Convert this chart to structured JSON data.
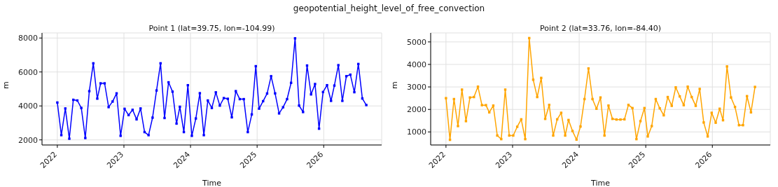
{
  "chart_data": [
    {
      "type": "line",
      "title": "geopotential_height_level_of_free_convection",
      "subtitle": "Point 1 (lat=39.75, lon=-104.99)",
      "xlabel": "Time",
      "ylabel": "m",
      "x": [
        2022.0,
        2022.06,
        2022.12,
        2022.18,
        2022.24,
        2022.3,
        2022.36,
        2022.42,
        2022.48,
        2022.54,
        2022.6,
        2022.65,
        2022.71,
        2022.77,
        2022.83,
        2022.89,
        2022.95,
        2023.01,
        2023.07,
        2023.13,
        2023.19,
        2023.25,
        2023.31,
        2023.37,
        2023.43,
        2023.49,
        2023.55,
        2023.61,
        2023.67,
        2023.73,
        2023.79,
        2023.84,
        2023.9,
        2023.96,
        2024.02,
        2024.08,
        2024.14,
        2024.2,
        2024.26,
        2024.32,
        2024.38,
        2024.44,
        2024.5,
        2024.56,
        2024.62,
        2024.68,
        2024.74,
        2024.8,
        2024.86,
        2024.92,
        2024.98,
        2025.03,
        2025.09,
        2025.15,
        2025.21,
        2025.27,
        2025.33,
        2025.39,
        2025.45,
        2025.51,
        2025.57,
        2025.63,
        2025.69,
        2025.75,
        2025.81,
        2025.87,
        2025.93,
        2025.99,
        2026.05,
        2026.11,
        2026.16,
        2026.22,
        2026.28,
        2026.34,
        2026.4,
        2026.46,
        2026.52,
        2026.58,
        2026.64
      ],
      "values": [
        4200,
        2280,
        3850,
        2070,
        4360,
        4320,
        3880,
        2110,
        4870,
        6510,
        4430,
        5330,
        5330,
        3930,
        4260,
        4740,
        2240,
        3830,
        3460,
        3770,
        3210,
        3850,
        2460,
        2280,
        3310,
        4910,
        6510,
        3290,
        5390,
        4840,
        2960,
        3950,
        2460,
        5220,
        2240,
        3260,
        4750,
        2280,
        4320,
        3880,
        4800,
        4020,
        4460,
        4420,
        3330,
        4870,
        4400,
        4400,
        2460,
        3500,
        6340,
        3840,
        4280,
        4730,
        5750,
        4740,
        3560,
        3920,
        4400,
        5360,
        7980,
        4020,
        3640,
        6380,
        4680,
        5290,
        2660,
        4820,
        5220,
        4300,
        5200,
        6400,
        4300,
        5750,
        5840,
        4810,
        6470,
        4440,
        4050
      ],
      "color": "#0000ff",
      "marker": "square",
      "line_style": "solid",
      "grid": true,
      "xlim": [
        2021.77,
        2026.87
      ],
      "xticks": [
        2022,
        2023,
        2024,
        2025,
        2026
      ],
      "ylim": [
        1700,
        8300
      ],
      "yticks": [
        2000,
        4000,
        6000,
        8000
      ]
    },
    {
      "type": "line",
      "subtitle": "Point 2 (lat=33.76, lon=-84.40)",
      "xlabel": "Time",
      "ylabel": "m",
      "x": [
        2022.0,
        2022.06,
        2022.12,
        2022.18,
        2022.24,
        2022.3,
        2022.36,
        2022.42,
        2022.48,
        2022.54,
        2022.6,
        2022.65,
        2022.71,
        2022.77,
        2022.83,
        2022.89,
        2022.95,
        2023.01,
        2023.07,
        2023.13,
        2023.19,
        2023.25,
        2023.31,
        2023.37,
        2023.43,
        2023.49,
        2023.55,
        2023.61,
        2023.67,
        2023.73,
        2023.79,
        2023.84,
        2023.9,
        2023.96,
        2024.02,
        2024.08,
        2024.14,
        2024.2,
        2024.26,
        2024.32,
        2024.38,
        2024.44,
        2024.5,
        2024.56,
        2024.62,
        2024.68,
        2024.74,
        2024.8,
        2024.86,
        2024.92,
        2024.98,
        2025.03,
        2025.09,
        2025.15,
        2025.21,
        2025.27,
        2025.33,
        2025.39,
        2025.45,
        2025.51,
        2025.57,
        2025.63,
        2025.69,
        2025.75,
        2025.81,
        2025.87,
        2025.93,
        2025.99,
        2026.05,
        2026.11,
        2026.16,
        2026.22,
        2026.28,
        2026.34,
        2026.4,
        2026.46,
        2026.52,
        2026.58,
        2026.64
      ],
      "values": [
        2500,
        650,
        2460,
        1260,
        2880,
        1480,
        2530,
        2550,
        3010,
        2190,
        2190,
        1870,
        2170,
        840,
        680,
        2880,
        840,
        840,
        1230,
        1560,
        680,
        5170,
        3320,
        2550,
        3400,
        1580,
        2200,
        840,
        1560,
        1850,
        840,
        1530,
        1040,
        660,
        1240,
        2460,
        3820,
        2460,
        2030,
        2530,
        840,
        2170,
        1580,
        1550,
        1550,
        1560,
        2200,
        2060,
        680,
        1480,
        2060,
        800,
        1260,
        2460,
        2050,
        1740,
        2550,
        2160,
        2980,
        2580,
        2190,
        3010,
        2550,
        2160,
        2910,
        1420,
        800,
        1850,
        1410,
        2030,
        1520,
        3910,
        2530,
        2110,
        1300,
        1300,
        2590,
        1870,
        3000
      ],
      "color": "#ffa500",
      "marker": "square",
      "line_style": "solid",
      "grid": true,
      "xlim": [
        2021.77,
        2026.87
      ],
      "xticks": [
        2022,
        2023,
        2024,
        2025,
        2026
      ],
      "ylim": [
        420,
        5400
      ],
      "yticks": [
        1000,
        2000,
        3000,
        4000,
        5000
      ]
    }
  ]
}
